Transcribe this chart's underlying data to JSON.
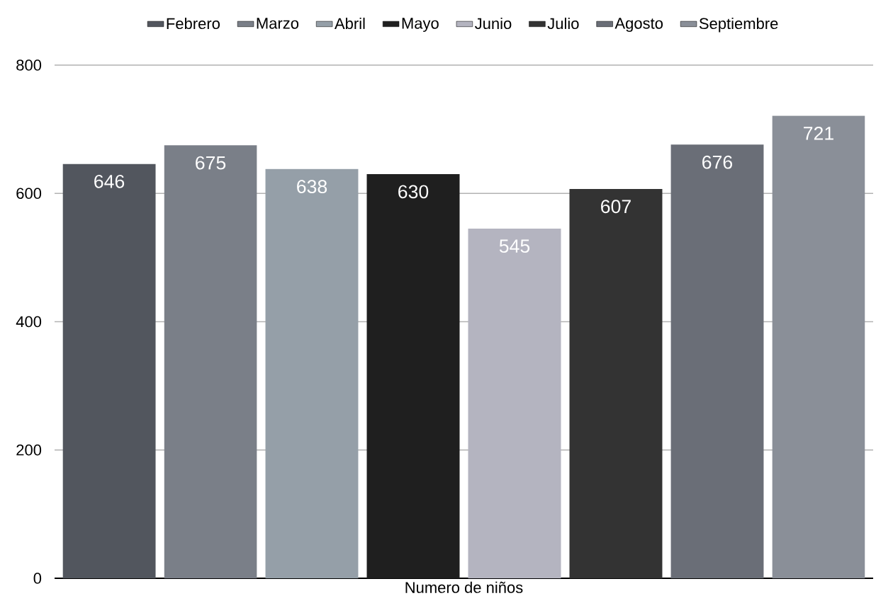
{
  "chart_data": {
    "type": "bar",
    "xlabel": null,
    "categories": [
      "Numero de niños"
    ],
    "series": [
      {
        "name": "Febrero",
        "color": "#52565e",
        "values": [
          646
        ]
      },
      {
        "name": "Marzo",
        "color": "#7a7f88",
        "values": [
          675
        ]
      },
      {
        "name": "Abril",
        "color": "#959fa8",
        "values": [
          638
        ]
      },
      {
        "name": "Mayo",
        "color": "#1f1f1f",
        "values": [
          630
        ]
      },
      {
        "name": "Junio",
        "color": "#b4b4c0",
        "values": [
          545
        ]
      },
      {
        "name": "Julio",
        "color": "#333333",
        "values": [
          607
        ]
      },
      {
        "name": "Agosto",
        "color": "#6a6e77",
        "values": [
          676
        ]
      },
      {
        "name": "Septiembre",
        "color": "#8a8f98",
        "values": [
          721
        ]
      }
    ],
    "ylim": [
      0,
      800
    ],
    "yticks": [
      0,
      200,
      400,
      600,
      800
    ],
    "grid": "y",
    "legend": "top",
    "data_labels": true
  }
}
